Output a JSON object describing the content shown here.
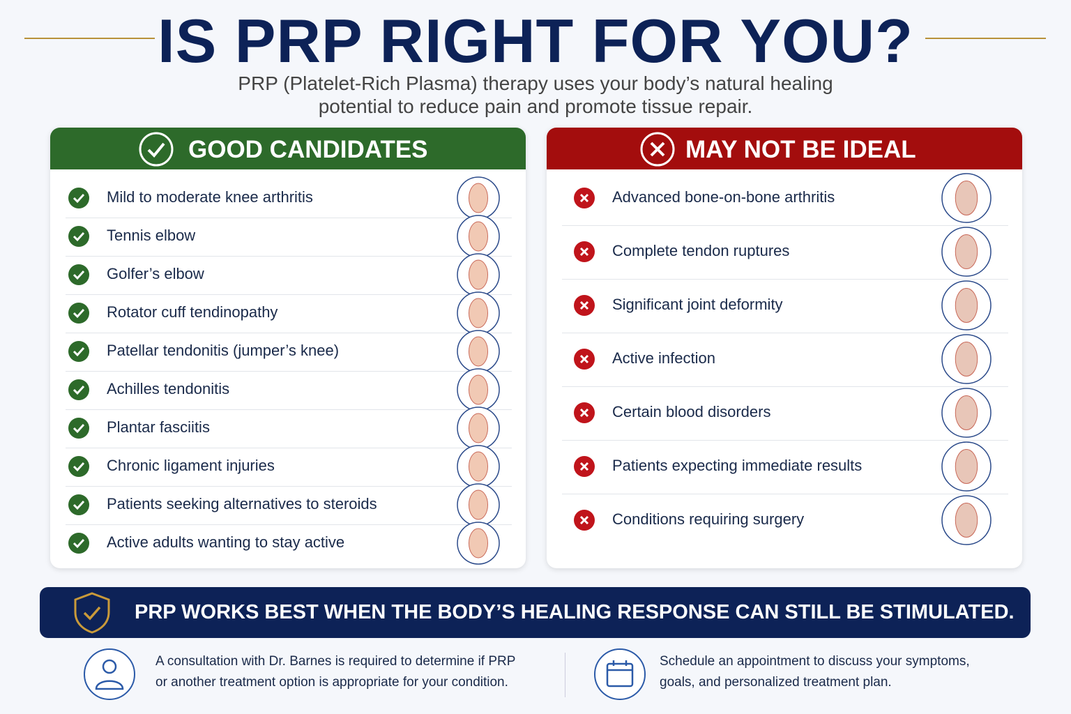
{
  "header": {
    "title": "IS PRP RIGHT FOR YOU?",
    "subtitle_lines": [
      "PRP (Platelet-Rich Plasma) therapy uses your body’s natural healing",
      "potential to reduce pain and promote tissue repair."
    ]
  },
  "good": {
    "title": "GOOD CANDIDATES",
    "items": [
      "Mild to moderate knee arthritis",
      "Tennis elbow",
      "Golfer’s elbow",
      "Rotator cuff tendinopathy",
      "Patellar tendonitis (jumper’s knee)",
      "Achilles tendonitis",
      "Plantar fasciitis",
      "Chronic ligament injuries",
      "Patients seeking alternatives to steroids",
      "Active adults wanting to stay active"
    ]
  },
  "bad": {
    "title": "MAY NOT BE IDEAL",
    "items": [
      "Advanced bone-on-bone arthritis",
      "Complete tendon ruptures",
      "Significant joint deformity",
      "Active infection",
      "Certain blood disorders",
      "Patients expecting immediate results",
      "Conditions requiring surgery"
    ]
  },
  "banner": {
    "text": "PRP WORKS BEST WHEN THE BODY’S HEALING RESPONSE CAN STILL BE STIMULATED."
  },
  "footer": {
    "notes": [
      {
        "lines": [
          "A consultation with Dr. Barnes is required to determine if PRP",
          "or another treatment option is appropriate for your condition."
        ]
      },
      {
        "lines": [
          "Schedule an appointment to discuss your symptoms,",
          "goals, and personalized treatment plan."
        ]
      }
    ]
  }
}
